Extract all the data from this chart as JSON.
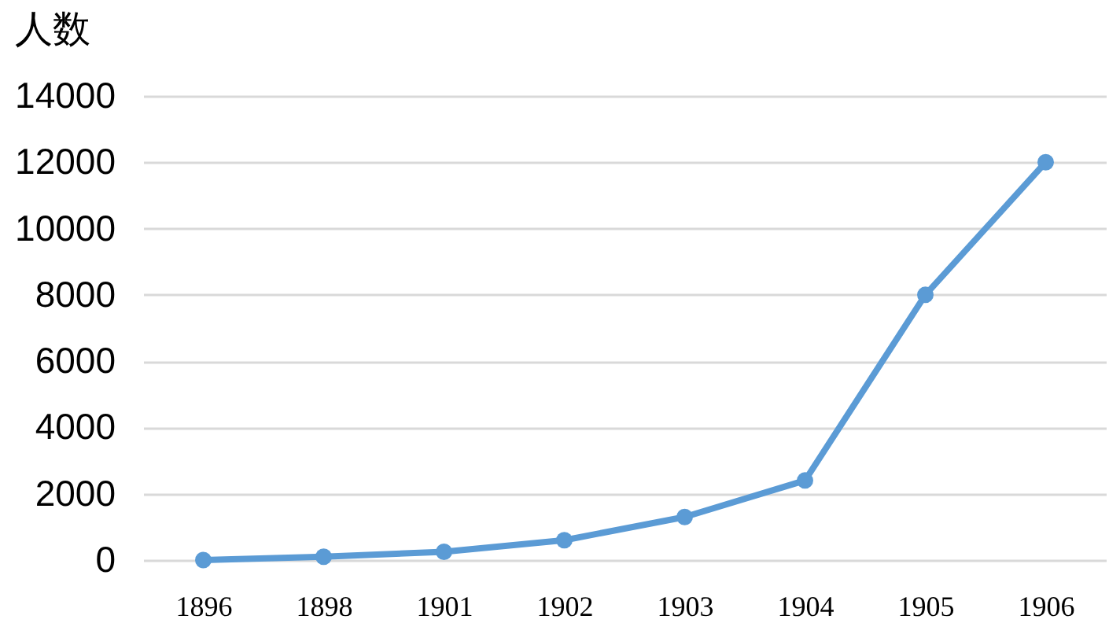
{
  "chart_data": {
    "type": "line",
    "ylabel": "人数",
    "categories": [
      "1896",
      "1898",
      "1901",
      "1902",
      "1903",
      "1904",
      "1905",
      "1906"
    ],
    "series": [
      {
        "color": "#5b9bd5",
        "values": [
          0,
          100,
          250,
          600,
          1300,
          2400,
          8000,
          12000
        ]
      }
    ],
    "ylim": [
      0,
      14000
    ],
    "yticks": [
      0,
      2000,
      4000,
      6000,
      8000,
      10000,
      12000,
      14000
    ],
    "grid": "y",
    "marker": "circle",
    "line_style": "solid"
  }
}
